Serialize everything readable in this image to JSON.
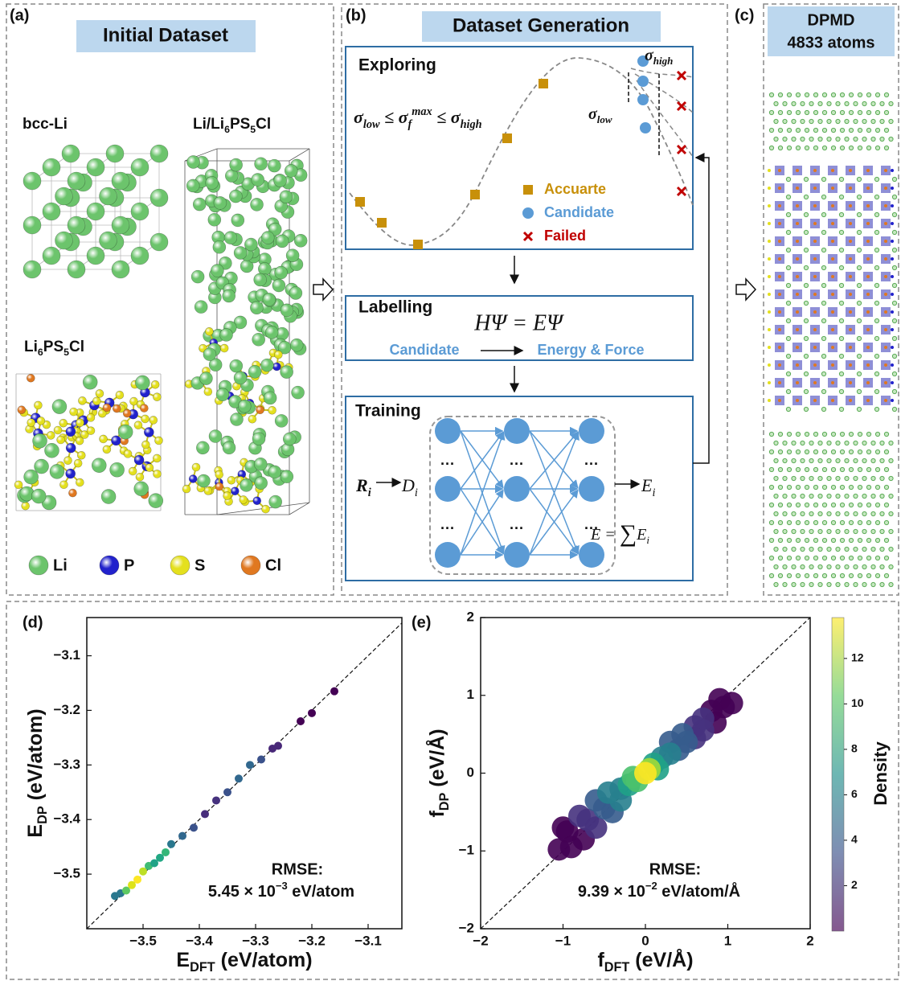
{
  "panel_a": {
    "label": "(a)",
    "title": "Initial Dataset",
    "bcc": "bcc-Li",
    "lps": [
      "Li",
      "6",
      "PS",
      "5",
      "Cl"
    ],
    "interface": [
      "Li/Li",
      "6",
      "PS",
      "5",
      "Cl"
    ],
    "elements": [
      {
        "symbol": "Li",
        "color": "#6cc46c"
      },
      {
        "symbol": "P",
        "color": "#2222cc"
      },
      {
        "symbol": "S",
        "color": "#e4e01e"
      },
      {
        "symbol": "Cl",
        "color": "#e07820"
      }
    ]
  },
  "panel_b": {
    "label": "(b)",
    "title": "Dataset Generation",
    "exploring": {
      "title": "Exploring",
      "condition": [
        "σ",
        "low",
        " ≤ ",
        "σ",
        "f",
        "max",
        " ≤ ",
        "σ",
        "high"
      ],
      "sigma_high": [
        "σ",
        "high"
      ],
      "sigma_low": [
        "σ",
        "low"
      ],
      "legend": [
        {
          "label": "Accuarte",
          "color": "#c8900a"
        },
        {
          "label": "Candidate",
          "color": "#5b9bd5"
        },
        {
          "label": "Failed",
          "color": "#c00000"
        }
      ]
    },
    "labelling": {
      "title": "Labelling",
      "equation": "HΨ = EΨ",
      "from": "Candidate",
      "to": "Energy & Force"
    },
    "training": {
      "title": "Training",
      "input": [
        "R",
        "i"
      ],
      "descriptor": [
        "D",
        "i"
      ],
      "output": [
        "E",
        "i"
      ],
      "sum": [
        "E = ",
        "∑",
        "E",
        "i"
      ],
      "ellipsis": "···"
    }
  },
  "panel_c": {
    "label": "(c)",
    "title": "DPMD",
    "subtitle": "4833 atoms"
  },
  "chart_data": [
    {
      "type": "scatter",
      "label": "(d)",
      "x_label": [
        "E",
        "DFT",
        " (eV/atom)"
      ],
      "y_label": [
        "E",
        "DP",
        " (eV/atom)"
      ],
      "xlim": [
        -3.6,
        -3.04
      ],
      "ylim": [
        -3.6,
        -3.03
      ],
      "xticks": [
        {
          "value": -3.5,
          "label": "−3.5"
        },
        {
          "value": -3.4,
          "label": "−3.4"
        },
        {
          "value": -3.3,
          "label": "−3.3"
        },
        {
          "value": -3.2,
          "label": "−3.2"
        },
        {
          "value": -3.1,
          "label": "−3.1"
        }
      ],
      "yticks": [
        {
          "value": -3.5,
          "label": "−3.5"
        },
        {
          "value": -3.4,
          "label": "−3.4"
        },
        {
          "value": -3.3,
          "label": "−3.3"
        },
        {
          "value": -3.2,
          "label": "−3.2"
        },
        {
          "value": -3.1,
          "label": "−3.1"
        }
      ],
      "annotation": [
        "RMSE:",
        "5.45 × 10",
        "−3",
        " eV/atom"
      ],
      "identity_line": true,
      "x": [
        -3.55,
        -3.54,
        -3.53,
        -3.52,
        -3.51,
        -3.5,
        -3.49,
        -3.48,
        -3.47,
        -3.46,
        -3.45,
        -3.43,
        -3.41,
        -3.39,
        -3.37,
        -3.35,
        -3.33,
        -3.31,
        -3.29,
        -3.27,
        -3.26,
        -3.22,
        -3.2,
        -3.16
      ],
      "values": [
        -3.54,
        -3.535,
        -3.53,
        -3.52,
        -3.51,
        -3.495,
        -3.485,
        -3.48,
        -3.47,
        -3.46,
        -3.445,
        -3.43,
        -3.415,
        -3.39,
        -3.365,
        -3.35,
        -3.325,
        -3.3,
        -3.29,
        -3.27,
        -3.265,
        -3.22,
        -3.205,
        -3.165
      ],
      "colors": [
        "#2a788e",
        "#2a788e",
        "#5ec962",
        "#dde318",
        "#fde725",
        "#bddf26",
        "#3fbc73",
        "#20a386",
        "#22a884",
        "#35b779",
        "#2a788e",
        "#31688e",
        "#3b528b",
        "#472d7b",
        "#46327e",
        "#3b528b",
        "#31688e",
        "#31688e",
        "#3b528b",
        "#482878",
        "#482878",
        "#440154",
        "#440154",
        "#440154"
      ]
    },
    {
      "type": "scatter",
      "label": "(e)",
      "x_label": [
        "f",
        "DFT",
        " (eV/Å)"
      ],
      "y_label": [
        "f",
        "DP",
        " (eV/Å)"
      ],
      "xlim": [
        -2,
        2
      ],
      "ylim": [
        -2,
        2
      ],
      "xticks": [
        {
          "value": -2,
          "label": "−2"
        },
        {
          "value": -1,
          "label": "−1"
        },
        0,
        1,
        2
      ],
      "yticks": [
        {
          "value": -2,
          "label": "−2"
        },
        {
          "value": -1,
          "label": "−1"
        },
        0,
        1,
        2
      ],
      "annotation": [
        "RMSE:",
        "9.39 × 10",
        "−2",
        " eV/atom/Å"
      ],
      "identity_line": true,
      "x": [
        -1.05,
        -0.95,
        -0.9,
        -1.0,
        1.05,
        0.95,
        0.9,
        0.85,
        0.8,
        -0.75,
        -0.8,
        -0.7,
        -0.6,
        0.7,
        0.7,
        0.6,
        0.6,
        -0.6,
        -0.5,
        -0.4,
        0.5,
        0.45,
        0.3,
        0.4,
        -0.45,
        -0.3,
        -0.3,
        0.3,
        0.2,
        -0.2,
        0.15,
        0.1,
        -0.15,
        -0.1,
        0.05,
        0
      ],
      "values": [
        -0.98,
        -0.75,
        -0.95,
        -0.7,
        0.9,
        0.85,
        0.95,
        0.65,
        0.8,
        -0.85,
        -0.55,
        -0.6,
        -0.7,
        0.7,
        0.55,
        0.6,
        0.45,
        -0.35,
        -0.45,
        -0.5,
        0.4,
        0.5,
        0.4,
        0.3,
        -0.25,
        -0.35,
        -0.2,
        0.25,
        0.2,
        -0.15,
        0.05,
        0.12,
        -0.05,
        -0.1,
        0.05,
        0
      ],
      "colors": [
        "#440154",
        "#440154",
        "#440154",
        "#440154",
        "#440154",
        "#440154",
        "#440154",
        "#440154",
        "#440154",
        "#440154",
        "#46327e",
        "#46327e",
        "#46327e",
        "#46327e",
        "#46327e",
        "#46327e",
        "#46327e",
        "#365c8d",
        "#365c8d",
        "#365c8d",
        "#365c8d",
        "#365c8d",
        "#365c8d",
        "#365c8d",
        "#277f8e",
        "#277f8e",
        "#277f8e",
        "#277f8e",
        "#277f8e",
        "#1fa187",
        "#1fa187",
        "#1fa187",
        "#4ac16d",
        "#4ac16d",
        "#a0da39",
        "#fde725"
      ],
      "colorbar": {
        "label": "Density",
        "lim": [
          0,
          13.8
        ],
        "ticks": [
          2,
          4,
          6,
          8,
          10,
          12
        ],
        "colormap": [
          "#440154",
          "#3b528b",
          "#21918c",
          "#5ec962",
          "#fde725"
        ]
      }
    }
  ]
}
